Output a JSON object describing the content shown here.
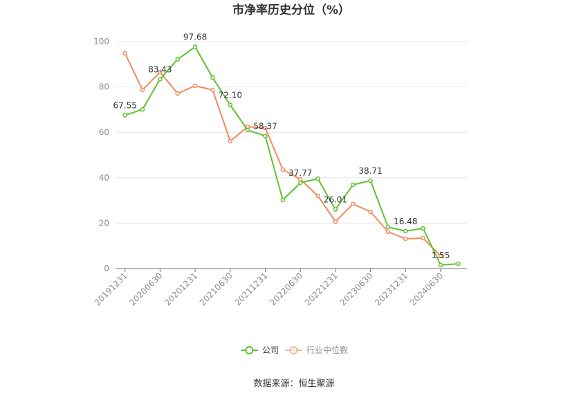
{
  "chart_data": {
    "type": "line",
    "title": "市净率历史分位（%）",
    "categories": [
      "20191231",
      "",
      "20200630",
      "",
      "20201231",
      "",
      "20210630",
      "",
      "20211231",
      "",
      "20220630",
      "",
      "20221231",
      "",
      "20230630",
      "",
      "20231231",
      "",
      "20240630",
      ""
    ],
    "ylim": [
      0,
      100
    ],
    "yticks": [
      0,
      20,
      40,
      60,
      80,
      100
    ],
    "grid": true,
    "legend_position": "bottom",
    "series": [
      {
        "name": "行业中位数",
        "color": "#f08a5d",
        "values": [
          94.8,
          78.7,
          86.5,
          77.1,
          80.5,
          78.7,
          56.1,
          62.5,
          61.9,
          43.6,
          39.3,
          32.0,
          20.7,
          28.4,
          25.0,
          16.2,
          13.1,
          13.4,
          5.5,
          null
        ]
      },
      {
        "name": "公司",
        "color": "#5ec22f",
        "values": [
          67.55,
          70.1,
          83.43,
          92.1,
          97.68,
          84.1,
          72.1,
          61.0,
          58.37,
          30.2,
          37.77,
          39.6,
          26.01,
          36.9,
          38.71,
          18.3,
          16.48,
          17.7,
          1.55,
          2.1
        ],
        "labels": [
          "67.55",
          "",
          "83.43",
          "",
          "97.68",
          "",
          "72.10",
          "",
          "58.37",
          "",
          "37.77",
          "",
          "26.01",
          "",
          "38.71",
          "",
          "16.48",
          "",
          "1.55",
          ""
        ]
      }
    ]
  },
  "source": "数据来源：恒生聚源"
}
